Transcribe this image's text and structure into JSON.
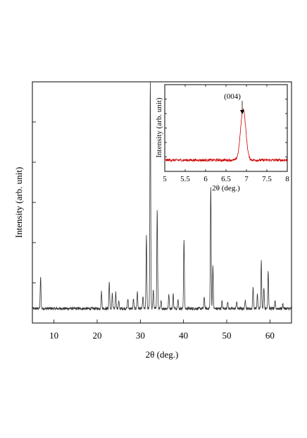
{
  "chart_data": [
    {
      "type": "line",
      "title": "",
      "xlabel": "2θ (deg.)",
      "ylabel": "Intensity  (arb. unit)",
      "xlim": [
        5,
        65
      ],
      "ylim": [
        0,
        1.0
      ],
      "x_ticks": [
        10,
        20,
        30,
        40,
        50,
        60
      ],
      "x_tick_labels": [
        "10",
        "20",
        "30",
        "40",
        "50",
        "60"
      ],
      "y_tick_labels": [],
      "grid": false,
      "series": [
        {
          "color": "#333333",
          "baseline": 0.06,
          "peaks": [
            {
              "x": 6.9,
              "y": 0.19
            },
            {
              "x": 21.0,
              "y": 0.13
            },
            {
              "x": 22.8,
              "y": 0.17
            },
            {
              "x": 23.5,
              "y": 0.12
            },
            {
              "x": 24.3,
              "y": 0.13
            },
            {
              "x": 25.0,
              "y": 0.09
            },
            {
              "x": 27.1,
              "y": 0.1
            },
            {
              "x": 28.4,
              "y": 0.1
            },
            {
              "x": 29.3,
              "y": 0.13
            },
            {
              "x": 30.6,
              "y": 0.11
            },
            {
              "x": 31.4,
              "y": 0.36
            },
            {
              "x": 32.3,
              "y": 1.0
            },
            {
              "x": 33.0,
              "y": 0.14
            },
            {
              "x": 33.9,
              "y": 0.47
            },
            {
              "x": 34.8,
              "y": 0.09
            },
            {
              "x": 36.6,
              "y": 0.12
            },
            {
              "x": 37.6,
              "y": 0.12
            },
            {
              "x": 38.7,
              "y": 0.1
            },
            {
              "x": 40.1,
              "y": 0.35
            },
            {
              "x": 44.8,
              "y": 0.11
            },
            {
              "x": 46.3,
              "y": 0.57
            },
            {
              "x": 46.8,
              "y": 0.24
            },
            {
              "x": 48.9,
              "y": 0.09
            },
            {
              "x": 50.2,
              "y": 0.09
            },
            {
              "x": 52.3,
              "y": 0.09
            },
            {
              "x": 54.3,
              "y": 0.1
            },
            {
              "x": 56.1,
              "y": 0.15
            },
            {
              "x": 57.1,
              "y": 0.12
            },
            {
              "x": 58.0,
              "y": 0.26
            },
            {
              "x": 58.6,
              "y": 0.15
            },
            {
              "x": 59.6,
              "y": 0.22
            },
            {
              "x": 61.2,
              "y": 0.09
            },
            {
              "x": 63.0,
              "y": 0.08
            }
          ]
        }
      ]
    },
    {
      "type": "line",
      "title": "",
      "xlabel": "2θ (deg.)",
      "ylabel": "Intensity  (arb. unit)",
      "xlim": [
        5,
        8
      ],
      "ylim": [
        0,
        1.0
      ],
      "x_ticks": [
        5,
        5.5,
        6,
        6.5,
        7,
        7.5,
        8
      ],
      "x_tick_labels": [
        "5",
        "5.5",
        "6",
        "6.5",
        "7",
        "7.5",
        "8"
      ],
      "y_tick_labels": [],
      "grid": false,
      "annotations": [
        {
          "text": "(004)",
          "x": 6.92
        }
      ],
      "series": [
        {
          "color": "#cc0000",
          "baseline": 0.13,
          "peaks": [
            {
              "x": 6.92,
              "y": 0.72
            }
          ]
        }
      ]
    }
  ]
}
